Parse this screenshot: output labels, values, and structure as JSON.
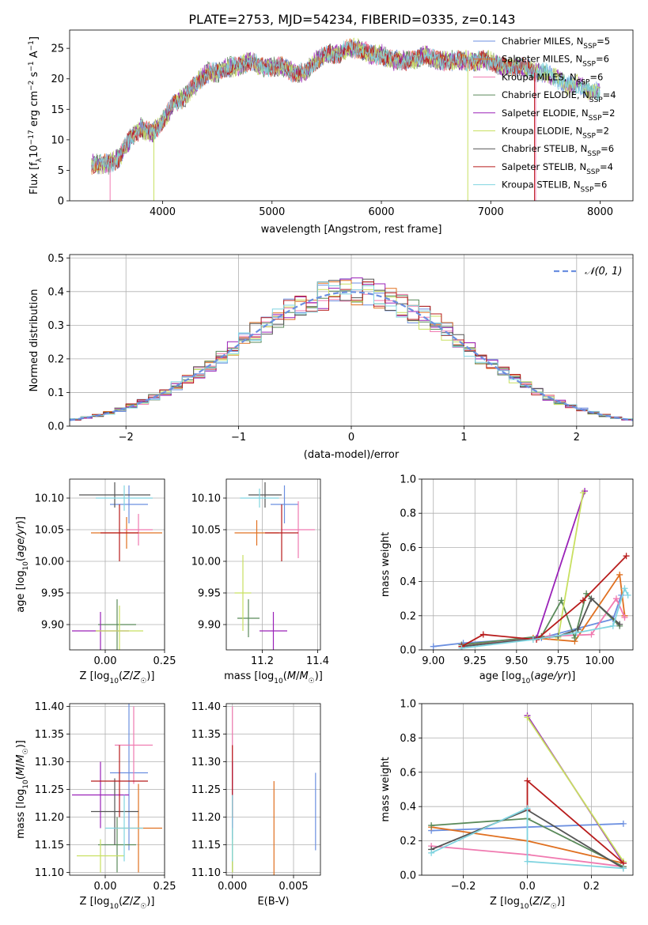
{
  "figure_title": "PLATE=2753, MJD=54234, FIBERID=0335, z=0.143",
  "colors": [
    "#6b8fe0",
    "#e07020",
    "#f07ab0",
    "#5a8a5a",
    "#9a22b8",
    "#c8e060",
    "#555555",
    "#b81c1c",
    "#80d4e0"
  ],
  "chart_data": [
    {
      "id": "spectrum",
      "type": "line",
      "title": "PLATE=2753, MJD=54234, FIBERID=0335, z=0.143",
      "xlabel": "wavelength [Angstrom, rest frame]",
      "ylabel": "Flux [f_λ 10^-17 erg cm^-2 s^-1 A^-1]",
      "xlim": [
        3150,
        8300
      ],
      "ylim": [
        0,
        28
      ],
      "xticks": [
        4000,
        5000,
        6000,
        7000,
        8000
      ],
      "yticks": [
        0,
        5,
        10,
        15,
        20,
        25
      ],
      "grid": false,
      "legend": "top-right",
      "series": [
        {
          "name": "Chabrier MILES, N_SSP=5",
          "sub": "SSP",
          "pre": "Chabrier MILES, N",
          "post": "=5"
        },
        {
          "name": "Salpeter MILES, N_SSP=6",
          "sub": "SSP",
          "pre": "Salpeter MILES, N",
          "post": "=6"
        },
        {
          "name": "Kroupa MILES, N_SSP=6",
          "sub": "SSP",
          "pre": "Kroupa MILES, N",
          "post": "=6"
        },
        {
          "name": "Chabrier ELODIE, N_SSP=4",
          "sub": "SSP",
          "pre": "Chabrier ELODIE, N",
          "post": "=4"
        },
        {
          "name": "Salpeter ELODIE, N_SSP=2",
          "sub": "SSP",
          "pre": "Salpeter ELODIE, N",
          "post": "=2"
        },
        {
          "name": "Kroupa ELODIE, N_SSP=2",
          "sub": "SSP",
          "pre": "Kroupa ELODIE, N",
          "post": "=2"
        },
        {
          "name": "Chabrier STELIB, N_SSP=6",
          "sub": "SSP",
          "pre": "Chabrier STELIB, N",
          "post": "=6"
        },
        {
          "name": "Salpeter STELIB, N_SSP=4",
          "sub": "SSP",
          "pre": "Salpeter STELIB, N",
          "post": "=4"
        },
        {
          "name": "Kroupa STELIB, N_SSP=6",
          "sub": "SSP",
          "pre": "Kroupa STELIB, N",
          "post": "=6"
        }
      ],
      "continuum": {
        "x": [
          3350,
          3500,
          3600,
          3700,
          3800,
          3900,
          4000,
          4100,
          4200,
          4300,
          4400,
          4500,
          4600,
          4700,
          4800,
          4900,
          5000,
          5100,
          5200,
          5300,
          5400,
          5500,
          5600,
          5700,
          5800,
          5900,
          6000,
          6100,
          6200,
          6300,
          6400,
          6500,
          6600,
          6700,
          6800,
          6900,
          7000,
          7100,
          7200,
          7300,
          7400,
          7500,
          7600,
          7700,
          7800,
          7900,
          8000
        ],
        "y": [
          6,
          6,
          7,
          10,
          12,
          11,
          13,
          16,
          17,
          19,
          21,
          21,
          22,
          22,
          23,
          22,
          22,
          22,
          21,
          21,
          23,
          24,
          24,
          25,
          25,
          24,
          24,
          23,
          23,
          23,
          24,
          23,
          23,
          23,
          23,
          23,
          23,
          22,
          22,
          22,
          21,
          21,
          20,
          19,
          19,
          18,
          18
        ]
      },
      "drops": [
        {
          "series": 2,
          "x": 3520
        },
        {
          "series": 5,
          "x": 3920
        },
        {
          "series": 5,
          "x": 6790
        },
        {
          "series": 7,
          "x": 7400
        },
        {
          "series": 2,
          "x": 7410
        }
      ]
    },
    {
      "id": "residuals",
      "type": "histogram",
      "xlabel": "(data-model)/error",
      "ylabel": "Normed distribution",
      "xlim": [
        -2.5,
        2.5
      ],
      "ylim": [
        0,
        0.51
      ],
      "xticks": [
        -2,
        -1,
        0,
        1,
        2
      ],
      "yticks": [
        0.0,
        0.1,
        0.2,
        0.3,
        0.4,
        0.5
      ],
      "bin_width": 0.1,
      "grid": true,
      "legend": "top-right",
      "reference_curve": {
        "name": "𝒩(0, 1)",
        "mean": 0,
        "sigma": 1
      }
    },
    {
      "id": "age-vs-Z",
      "type": "errorbar",
      "xlabel": "Z [log10(Z/Z☉)]",
      "ylabel": "age [log10(age/yr)]",
      "xlim": [
        -0.15,
        0.25
      ],
      "ylim": [
        9.86,
        10.13
      ],
      "xticks": [
        0.0,
        0.25
      ],
      "xtick_labels": [
        "0.00",
        "0.25"
      ],
      "yticks": [
        9.9,
        9.95,
        10.0,
        10.05,
        10.1
      ],
      "ytick_labels": [
        "9.90",
        "9.95",
        "10.00",
        "10.05",
        "10.10"
      ],
      "grid": true,
      "points": [
        {
          "series": 0,
          "x": 0.1,
          "y": 10.09,
          "xerr": 0.08,
          "yerr": 0.03
        },
        {
          "series": 1,
          "x": 0.09,
          "y": 10.045,
          "xerr": 0.15,
          "yerr": 0.025
        },
        {
          "series": 2,
          "x": 0.14,
          "y": 10.05,
          "xerr": 0.06,
          "yerr": 0.025
        },
        {
          "series": 3,
          "x": 0.05,
          "y": 9.9,
          "xerr": 0.08,
          "yerr": 0.04
        },
        {
          "series": 4,
          "x": -0.02,
          "y": 9.89,
          "xerr": 0.12,
          "yerr": 0.03
        },
        {
          "series": 5,
          "x": 0.06,
          "y": 9.89,
          "xerr": 0.1,
          "yerr": 0.04
        },
        {
          "series": 6,
          "x": 0.04,
          "y": 10.105,
          "xerr": 0.15,
          "yerr": 0.02
        },
        {
          "series": 7,
          "x": 0.06,
          "y": 10.045,
          "xerr": 0.08,
          "yerr": 0.045
        },
        {
          "series": 8,
          "x": 0.08,
          "y": 10.1,
          "xerr": 0.12,
          "yerr": 0.02
        }
      ]
    },
    {
      "id": "age-vs-mass",
      "type": "errorbar",
      "xlabel": "mass [log10(M/M☉)]",
      "ylabel": "",
      "xlim": [
        11.07,
        11.41
      ],
      "ylim": [
        9.86,
        10.13
      ],
      "xticks": [
        11.2,
        11.4
      ],
      "xtick_labels": [
        "11.2",
        "11.4"
      ],
      "yticks": [
        9.9,
        9.95,
        10.0,
        10.05,
        10.1
      ],
      "ytick_labels": [
        "9.90",
        "9.95",
        "10.00",
        "10.05",
        "10.10"
      ],
      "grid": true,
      "points": [
        {
          "series": 0,
          "x": 11.28,
          "y": 10.09,
          "xerr": 0.05,
          "yerr": 0.03
        },
        {
          "series": 1,
          "x": 11.18,
          "y": 10.045,
          "xerr": 0.08,
          "yerr": 0.02
        },
        {
          "series": 2,
          "x": 11.33,
          "y": 10.05,
          "xerr": 0.06,
          "yerr": 0.045
        },
        {
          "series": 3,
          "x": 11.15,
          "y": 9.91,
          "xerr": 0.04,
          "yerr": 0.03
        },
        {
          "series": 4,
          "x": 11.24,
          "y": 9.89,
          "xerr": 0.05,
          "yerr": 0.03
        },
        {
          "series": 5,
          "x": 11.13,
          "y": 9.95,
          "xerr": 0.03,
          "yerr": 0.06
        },
        {
          "series": 6,
          "x": 11.21,
          "y": 10.105,
          "xerr": 0.06,
          "yerr": 0.02
        },
        {
          "series": 7,
          "x": 11.27,
          "y": 10.045,
          "xerr": 0.06,
          "yerr": 0.045
        },
        {
          "series": 8,
          "x": 11.19,
          "y": 10.1,
          "xerr": 0.07,
          "yerr": 0.015
        }
      ]
    },
    {
      "id": "weight-vs-age",
      "type": "line",
      "xlabel": "age [log10(age/yr)]",
      "ylabel": "mass weight",
      "xlim": [
        8.93,
        10.2
      ],
      "ylim": [
        0,
        1
      ],
      "xticks": [
        9.0,
        9.25,
        9.5,
        9.75,
        10.0
      ],
      "xtick_labels": [
        "9.00",
        "9.25",
        "9.50",
        "9.75",
        "10.00"
      ],
      "yticks": [
        0.0,
        0.2,
        0.4,
        0.6,
        0.8,
        1.0
      ],
      "ytick_labels": [
        "0.0",
        "0.2",
        "0.4",
        "0.6",
        "0.8",
        "1.0"
      ],
      "grid": true,
      "series": [
        {
          "series": 0,
          "x": [
            9.0,
            9.18,
            9.65,
            10.08,
            10.13
          ],
          "y": [
            0.02,
            0.04,
            0.07,
            0.18,
            0.32
          ]
        },
        {
          "series": 1,
          "x": [
            9.17,
            9.6,
            9.85,
            10.12,
            10.15
          ],
          "y": [
            0.03,
            0.07,
            0.05,
            0.44,
            0.2
          ]
        },
        {
          "series": 2,
          "x": [
            9.17,
            9.7,
            9.95,
            10.1,
            10.15
          ],
          "y": [
            0.02,
            0.08,
            0.09,
            0.3,
            0.19
          ]
        },
        {
          "series": 3,
          "x": [
            9.17,
            9.65,
            9.77,
            9.85,
            9.92,
            10.12
          ],
          "y": [
            0.03,
            0.08,
            0.29,
            0.07,
            0.33,
            0.14
          ]
        },
        {
          "series": 4,
          "x": [
            9.62,
            9.91
          ],
          "y": [
            0.07,
            0.93
          ]
        },
        {
          "series": 5,
          "x": [
            9.75,
            9.9
          ],
          "y": [
            0.07,
            0.92
          ]
        },
        {
          "series": 6,
          "x": [
            9.17,
            9.75,
            9.87,
            9.95,
            10.12
          ],
          "y": [
            0.02,
            0.08,
            0.12,
            0.3,
            0.15
          ]
        },
        {
          "series": 7,
          "x": [
            9.17,
            9.3,
            9.62,
            9.9,
            10.16
          ],
          "y": [
            0.02,
            0.09,
            0.06,
            0.29,
            0.55
          ]
        },
        {
          "series": 8,
          "x": [
            9.17,
            9.6,
            9.86,
            10.08,
            10.15,
            10.17
          ],
          "y": [
            0.01,
            0.06,
            0.1,
            0.14,
            0.36,
            0.32
          ]
        }
      ]
    },
    {
      "id": "mass-vs-Z",
      "type": "errorbar",
      "xlabel": "Z [log10(Z/Z☉)]",
      "ylabel": "mass [log10(M/M☉)]",
      "xlim": [
        -0.15,
        0.25
      ],
      "ylim": [
        11.095,
        11.405
      ],
      "xticks": [
        0.0,
        0.25
      ],
      "xtick_labels": [
        "0.00",
        "0.25"
      ],
      "yticks": [
        11.1,
        11.15,
        11.2,
        11.25,
        11.3,
        11.35,
        11.4
      ],
      "ytick_labels": [
        "11.10",
        "11.15",
        "11.20",
        "11.25",
        "11.30",
        "11.35",
        "11.40"
      ],
      "grid": true,
      "points": [
        {
          "series": 0,
          "x": 0.1,
          "y": 11.28,
          "xerr": 0.08,
          "yerr": 0.14
        },
        {
          "series": 1,
          "x": 0.14,
          "y": 11.18,
          "xerr": 0.1,
          "yerr": 0.08
        },
        {
          "series": 2,
          "x": 0.12,
          "y": 11.33,
          "xerr": 0.08,
          "yerr": 0.07
        },
        {
          "series": 3,
          "x": 0.05,
          "y": 11.15,
          "xerr": 0.08,
          "yerr": 0.05
        },
        {
          "series": 4,
          "x": -0.02,
          "y": 11.24,
          "xerr": 0.12,
          "yerr": 0.06
        },
        {
          "series": 5,
          "x": -0.02,
          "y": 11.13,
          "xerr": 0.1,
          "yerr": 0.03
        },
        {
          "series": 6,
          "x": 0.04,
          "y": 11.21,
          "xerr": 0.1,
          "yerr": 0.06
        },
        {
          "series": 7,
          "x": 0.06,
          "y": 11.265,
          "xerr": 0.12,
          "yerr": 0.065
        },
        {
          "series": 8,
          "x": 0.08,
          "y": 11.18,
          "xerr": 0.08,
          "yerr": 0.06
        }
      ]
    },
    {
      "id": "mass-vs-EBV",
      "type": "errorbar",
      "xlabel": "E(B-V)",
      "ylabel": "",
      "xlim": [
        -0.0005,
        0.0072
      ],
      "ylim": [
        11.095,
        11.405
      ],
      "xticks": [
        0.0,
        0.005
      ],
      "xtick_labels": [
        "0.000",
        "0.005"
      ],
      "yticks": [
        11.1,
        11.15,
        11.2,
        11.25,
        11.3,
        11.35,
        11.4
      ],
      "ytick_labels": [
        "11.10",
        "11.15",
        "11.20",
        "11.25",
        "11.30",
        "11.35",
        "11.40"
      ],
      "grid": true,
      "points": [
        {
          "series": 0,
          "x": 0.0068,
          "y": 11.21,
          "xerr": 0,
          "yerr": 0.07
        },
        {
          "series": 1,
          "x": 0.0034,
          "y": 11.18,
          "xerr": 0,
          "yerr": 0.085
        },
        {
          "series": 2,
          "x": 0.0,
          "y": 11.33,
          "xerr": 0,
          "yerr": 0.07
        },
        {
          "series": 3,
          "x": 0.0,
          "y": 11.15,
          "xerr": 0,
          "yerr": 0.05
        },
        {
          "series": 4,
          "x": 0.0,
          "y": 11.24,
          "xerr": 0,
          "yerr": 0.06
        },
        {
          "series": 5,
          "x": 0.0,
          "y": 11.13,
          "xerr": 0,
          "yerr": 0.03
        },
        {
          "series": 7,
          "x": 0.0,
          "y": 11.265,
          "xerr": 0,
          "yerr": 0.065
        },
        {
          "series": 8,
          "x": 0.0,
          "y": 11.18,
          "xerr": 0,
          "yerr": 0.06
        }
      ]
    },
    {
      "id": "weight-vs-Z",
      "type": "line",
      "xlabel": "Z [log10(Z/Z☉)]",
      "ylabel": "mass weight",
      "xlim": [
        -0.33,
        0.33
      ],
      "ylim": [
        0,
        1
      ],
      "xticks": [
        -0.2,
        0.0,
        0.2
      ],
      "xtick_labels": [
        "−0.2",
        "0.0",
        "0.2"
      ],
      "yticks": [
        0.0,
        0.2,
        0.4,
        0.6,
        0.8,
        1.0
      ],
      "ytick_labels": [
        "0.0",
        "0.2",
        "0.4",
        "0.6",
        "0.8",
        "1.0"
      ],
      "grid": true,
      "series": [
        {
          "series": 0,
          "x": [
            -0.3,
            0.0,
            0.3
          ],
          "y": [
            0.26,
            0.28,
            0.3
          ]
        },
        {
          "series": 1,
          "x": [
            -0.3,
            0.0,
            0.3
          ],
          "y": [
            0.28,
            0.2,
            0.07
          ]
        },
        {
          "series": 2,
          "x": [
            -0.3,
            0.0,
            0.3
          ],
          "y": [
            0.17,
            0.12,
            0.05
          ]
        },
        {
          "series": 3,
          "x": [
            -0.3,
            0.0,
            0.3
          ],
          "y": [
            0.29,
            0.33,
            0.05
          ]
        },
        {
          "series": 4,
          "x": [
            0.0,
            0.3
          ],
          "y": [
            0.93,
            0.07
          ]
        },
        {
          "series": 5,
          "x": [
            0.0,
            0.3
          ],
          "y": [
            0.92,
            0.08
          ]
        },
        {
          "series": 6,
          "x": [
            -0.3,
            0.0,
            0.3
          ],
          "y": [
            0.15,
            0.38,
            0.04
          ]
        },
        {
          "series": 7,
          "x": [
            0.0,
            0.0,
            0.3
          ],
          "y": [
            0.38,
            0.55,
            0.07
          ]
        },
        {
          "series": 8,
          "x": [
            -0.3,
            0.0,
            0.0,
            0.3
          ],
          "y": [
            0.13,
            0.39,
            0.08,
            0.04
          ]
        }
      ]
    }
  ]
}
